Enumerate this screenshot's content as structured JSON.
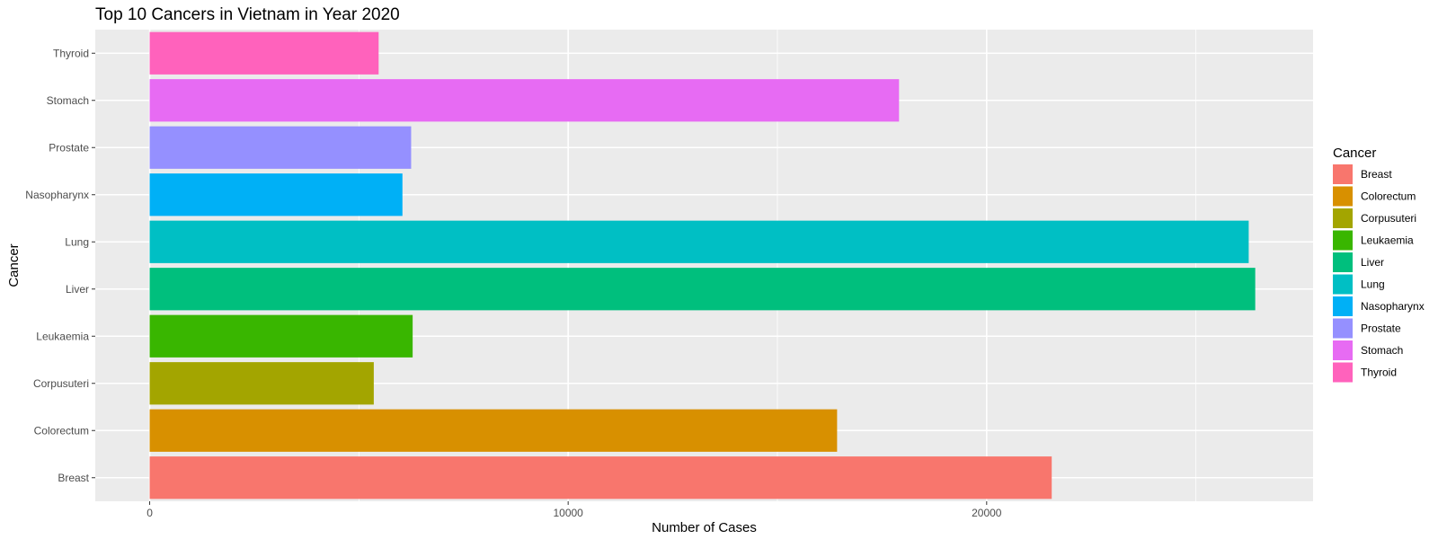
{
  "chart_data": {
    "type": "bar",
    "orientation": "horizontal",
    "title": "Top 10 Cancers in Vietnam in Year 2020",
    "xlabel": "Number of Cases",
    "ylabel": "Cancer",
    "xlim": [
      -1300,
      27800
    ],
    "x_ticks": [
      0,
      10000,
      20000
    ],
    "x_minor_ticks": [
      5000,
      15000,
      25000
    ],
    "grid": true,
    "legend": {
      "title": "Cancer",
      "placement": "right",
      "entries": [
        "Breast",
        "Colorectum",
        "Corpusuteri",
        "Leukaemia",
        "Liver",
        "Lung",
        "Nasopharynx",
        "Prostate",
        "Stomach",
        "Thyroid"
      ]
    },
    "categories": [
      "Breast",
      "Colorectum",
      "Corpusuteri",
      "Leukaemia",
      "Liver",
      "Lung",
      "Nasopharynx",
      "Prostate",
      "Stomach",
      "Thyroid"
    ],
    "values": [
      21555,
      16426,
      5355,
      6284,
      26418,
      26262,
      6040,
      6248,
      17906,
      5471
    ],
    "colors": [
      "#F8766D",
      "#D89000",
      "#A3A500",
      "#39B600",
      "#00BF7D",
      "#00BFC4",
      "#00B0F6",
      "#9590FF",
      "#E76BF3",
      "#FF62BC"
    ]
  }
}
